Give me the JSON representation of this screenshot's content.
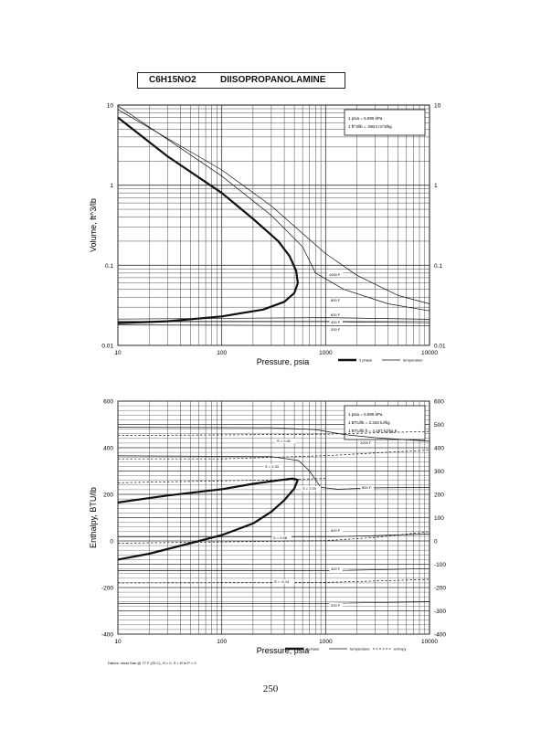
{
  "header": {
    "formula": "C6H15NO2",
    "compound": "DIISOPROPANOLAMINE"
  },
  "page_number": "250",
  "chart_data": [
    {
      "type": "line",
      "xlabel": "Pressure,  psia",
      "ylabel": "Volume, ft^3/lb",
      "x_scale": "log",
      "y_scale": "log",
      "xlim": [
        10,
        10000
      ],
      "ylim": [
        0.01,
        10
      ],
      "x_ticks": [
        "10",
        "100",
        "1000",
        "10000"
      ],
      "y_ticks_left": [
        "10",
        "1",
        "0.1",
        "0.01"
      ],
      "y_ticks_right": [
        "10",
        "1",
        "0.1",
        "0.01"
      ],
      "grid": true,
      "legend_box": [
        "1 psia  =  6.895 kPa",
        "1 ft^3/lb  =  .0624 m^3/kg"
      ],
      "bottom_legend": [
        "2 phase",
        "temperature"
      ],
      "series": [
        {
          "role": "two-phase",
          "points": [
            [
              10,
              7
            ],
            [
              30,
              2.3
            ],
            [
              100,
              0.8
            ],
            [
              200,
              0.38
            ],
            [
              350,
              0.2
            ],
            [
              450,
              0.13
            ],
            [
              520,
              0.085
            ],
            [
              540,
              0.06
            ],
            [
              500,
              0.045
            ],
            [
              400,
              0.035
            ],
            [
              250,
              0.028
            ],
            [
              100,
              0.023
            ],
            [
              30,
              0.02
            ],
            [
              10,
              0.019
            ]
          ]
        },
        {
          "label": "1000 F",
          "points": [
            [
              10,
              8.8
            ],
            [
              100,
              1.55
            ],
            [
              300,
              0.55
            ],
            [
              700,
              0.21
            ],
            [
              1000,
              0.14
            ],
            [
              2000,
              0.075
            ],
            [
              5000,
              0.042
            ],
            [
              10000,
              0.033
            ]
          ]
        },
        {
          "label": "800 F",
          "points": [
            [
              10,
              9.8
            ],
            [
              100,
              1.3
            ],
            [
              300,
              0.42
            ],
            [
              600,
              0.17
            ],
            [
              800,
              0.08
            ],
            [
              1500,
              0.05
            ],
            [
              4000,
              0.033
            ],
            [
              10000,
              0.027
            ]
          ]
        },
        {
          "label": "600 F",
          "points": [
            [
              10,
              0.0213
            ],
            [
              1000,
              0.0222
            ],
            [
              10000,
              0.0212
            ]
          ]
        },
        {
          "label": "400 F",
          "points": [
            [
              10,
              0.0198
            ],
            [
              1000,
              0.0198
            ],
            [
              10000,
              0.0192
            ]
          ]
        },
        {
          "label": "200 F",
          "points": [
            [
              10,
              0.018
            ],
            [
              10000,
              0.0175
            ]
          ]
        }
      ]
    },
    {
      "type": "line",
      "xlabel": "Pressure,  psia",
      "ylabel": "Enthalpy, BTU/lb",
      "x_scale": "log",
      "xlim": [
        10,
        10000
      ],
      "ylim": [
        -400,
        600
      ],
      "x_ticks": [
        "10",
        "100",
        "1000",
        "10000"
      ],
      "y_ticks_left": [
        "600",
        "400",
        "200",
        "0",
        "-200",
        "-400"
      ],
      "y_ticks_right": [
        "600",
        "500",
        "400",
        "300",
        "200",
        "100",
        "0",
        "-100",
        "-200",
        "-300",
        "-400"
      ],
      "grid": true,
      "legend_box": [
        "1 psia  =  6.895 kPa",
        "1 BTU/lb  =  2.326 kJ/kg",
        "1 BTU/lb ft  =  4.187 kJ/kg K"
      ],
      "bottom_legend": [
        "2 phase",
        "temperature",
        "entropy"
      ],
      "footnote": "Datum: Ideal Gas @ 77 F (25 C),  H = 0,  S = R ln P = 0",
      "series": [
        {
          "role": "two-phase",
          "points": [
            [
              10,
              165
            ],
            [
              30,
              195
            ],
            [
              100,
              222
            ],
            [
              200,
              245
            ],
            [
              350,
              260
            ],
            [
              480,
              268
            ],
            [
              540,
              262
            ],
            [
              500,
              225
            ],
            [
              400,
              175
            ],
            [
              300,
              125
            ],
            [
              200,
              75
            ],
            [
              100,
              25
            ],
            [
              50,
              -10
            ],
            [
              20,
              -55
            ],
            [
              10,
              -80
            ]
          ]
        },
        {
          "label": "1000 F",
          "points": [
            [
              10,
              488
            ],
            [
              300,
              486
            ],
            [
              800,
              478
            ],
            [
              1500,
              457
            ],
            [
              3000,
              443
            ],
            [
              10000,
              428
            ]
          ]
        },
        {
          "label": "800 F",
          "points": [
            [
              10,
              365
            ],
            [
              300,
              362
            ],
            [
              550,
              345
            ],
            [
              700,
              300
            ],
            [
              900,
              230
            ],
            [
              1300,
              222
            ],
            [
              3000,
              228
            ],
            [
              10000,
              230
            ]
          ]
        },
        {
          "label": "600 F",
          "points": [
            [
              10,
              17
            ],
            [
              1000,
              17
            ],
            [
              3000,
              23
            ],
            [
              10000,
              30
            ]
          ]
        },
        {
          "label": "400 F",
          "points": [
            [
              10,
              -128
            ],
            [
              1000,
              -128
            ],
            [
              10000,
              -119
            ]
          ]
        },
        {
          "label": "200 F",
          "points": [
            [
              10,
              -268
            ],
            [
              1000,
              -268
            ],
            [
              10000,
              -261
            ]
          ]
        },
        {
          "label": "S = 0.41",
          "dashed": true,
          "points": [
            [
              10,
              452
            ],
            [
              1000,
              458
            ],
            [
              10000,
              470
            ]
          ]
        },
        {
          "label": "S = 0.33",
          "dashed": true,
          "points": [
            [
              10,
              352
            ],
            [
              100,
              352
            ],
            [
              1000,
              366
            ],
            [
              10000,
              390
            ]
          ]
        },
        {
          "label": "S = 0.29",
          "dashed": true,
          "points": [
            [
              10,
              250
            ],
            [
              300,
              262
            ],
            [
              1000,
              268
            ]
          ]
        },
        {
          "label": "S = 0.08",
          "dashed": true,
          "points": [
            [
              10,
              -10
            ],
            [
              1000,
              1
            ],
            [
              3000,
              15
            ],
            [
              10000,
              40
            ]
          ]
        },
        {
          "label": "S = -0.14",
          "dashed": true,
          "points": [
            [
              10,
              -180
            ],
            [
              1000,
              -178
            ],
            [
              10000,
              -165
            ]
          ]
        }
      ]
    }
  ]
}
